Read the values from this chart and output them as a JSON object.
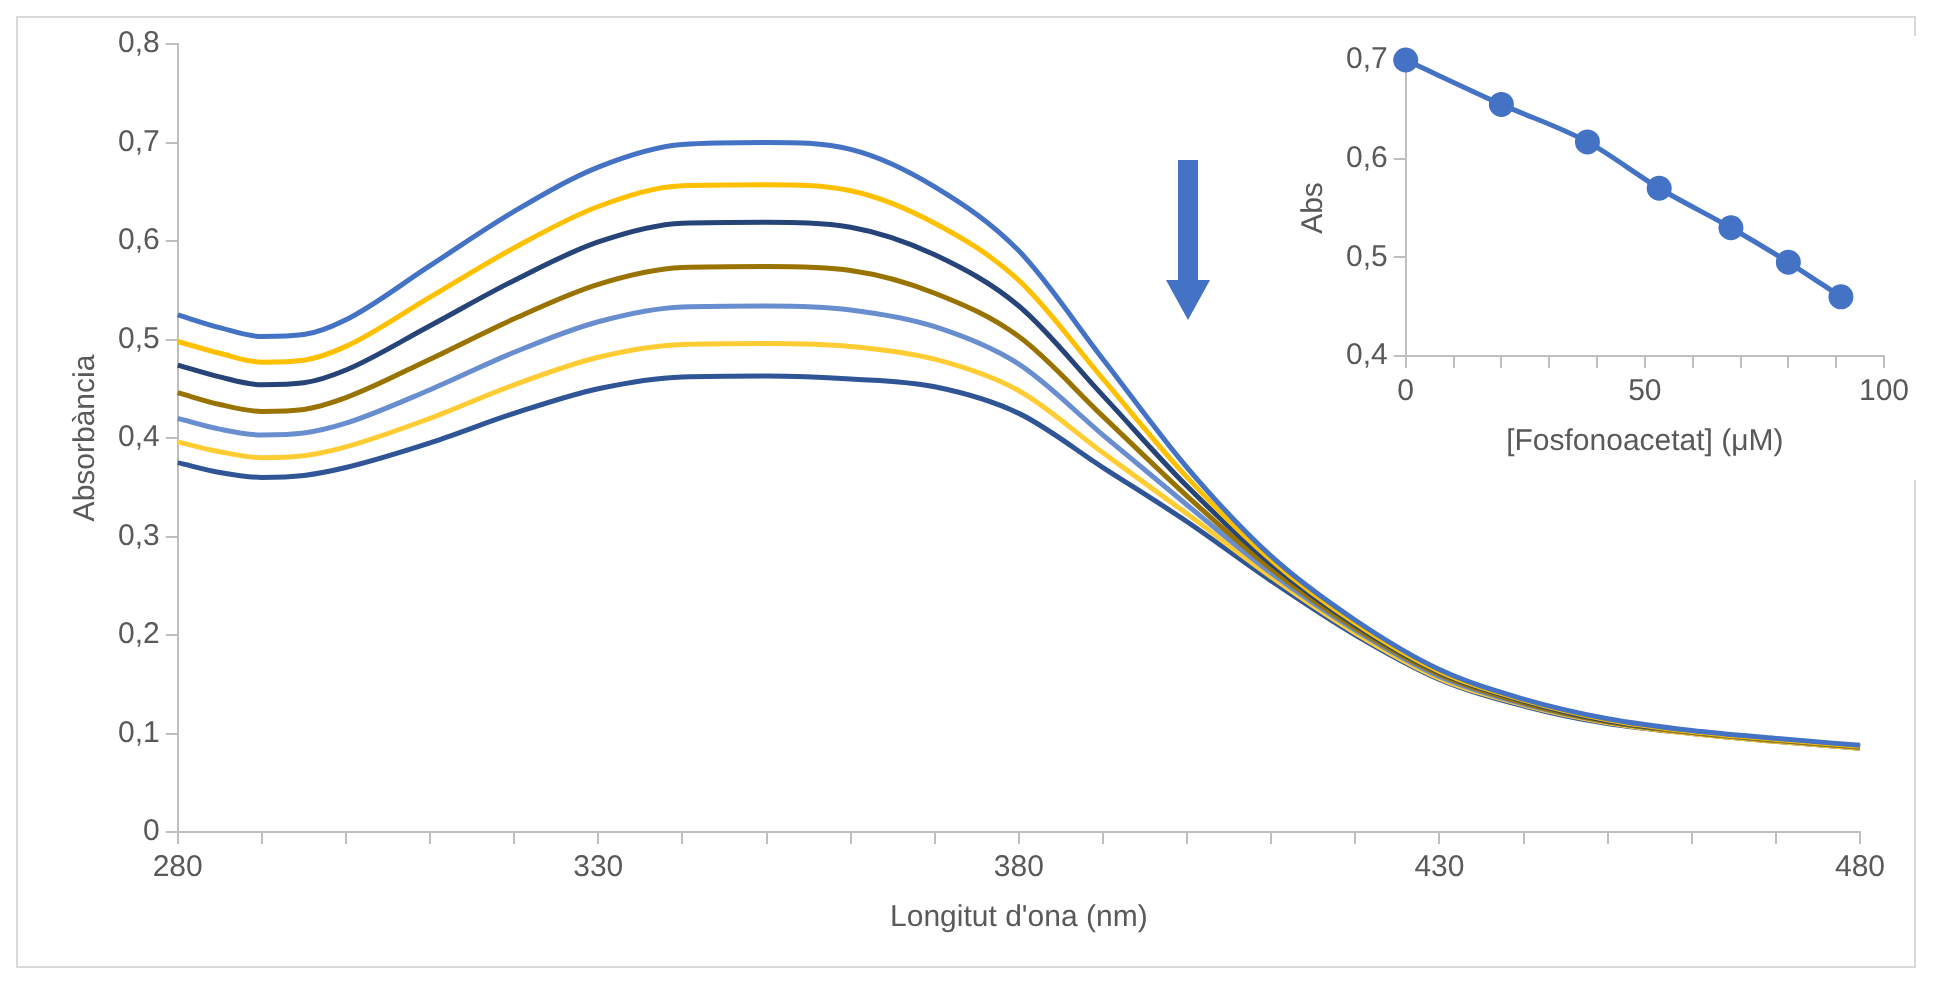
{
  "chart_data": [
    {
      "type": "line",
      "xlabel": "Longitut d'ona (nm)",
      "ylabel": "Absorbància",
      "marker": "none",
      "grid": false,
      "legend": false,
      "x": [
        280,
        285,
        290,
        295,
        300,
        310,
        320,
        330,
        340,
        350,
        360,
        370,
        380,
        390,
        400,
        410,
        420,
        430,
        440,
        450,
        460,
        470,
        480
      ],
      "xlim": [
        280,
        480
      ],
      "xticks": [
        {
          "value": 280,
          "label": "280"
        },
        {
          "value": 290,
          "label": null
        },
        {
          "value": 300,
          "label": null
        },
        {
          "value": 310,
          "label": null
        },
        {
          "value": 320,
          "label": null
        },
        {
          "value": 330,
          "label": "330"
        },
        {
          "value": 340,
          "label": null
        },
        {
          "value": 350,
          "label": null
        },
        {
          "value": 360,
          "label": null
        },
        {
          "value": 370,
          "label": null
        },
        {
          "value": 380,
          "label": "380"
        },
        {
          "value": 390,
          "label": null
        },
        {
          "value": 400,
          "label": null
        },
        {
          "value": 410,
          "label": null
        },
        {
          "value": 420,
          "label": null
        },
        {
          "value": 430,
          "label": "430"
        },
        {
          "value": 440,
          "label": null
        },
        {
          "value": 450,
          "label": null
        },
        {
          "value": 460,
          "label": null
        },
        {
          "value": 470,
          "label": null
        },
        {
          "value": 480,
          "label": "480"
        }
      ],
      "ylim": [
        0,
        0.8
      ],
      "yticks": [
        {
          "value": 0,
          "label": "0"
        },
        {
          "value": 0.1,
          "label": "0,1"
        },
        {
          "value": 0.2,
          "label": "0,2"
        },
        {
          "value": 0.3,
          "label": "0,3"
        },
        {
          "value": 0.4,
          "label": "0,4"
        },
        {
          "value": 0.5,
          "label": "0,5"
        },
        {
          "value": 0.6,
          "label": "0,6"
        },
        {
          "value": 0.7,
          "label": "0,7"
        },
        {
          "value": 0.8,
          "label": "0,8"
        }
      ],
      "series": [
        {
          "color": "#4472c4",
          "values": [
            0.525,
            0.512,
            0.503,
            0.505,
            0.52,
            0.575,
            0.63,
            0.675,
            0.698,
            0.7,
            0.693,
            0.655,
            0.59,
            0.48,
            0.37,
            0.28,
            0.215,
            0.165,
            0.135,
            0.115,
            0.103,
            0.095,
            0.088
          ]
        },
        {
          "color": "#ffc000",
          "values": [
            0.498,
            0.486,
            0.477,
            0.479,
            0.493,
            0.543,
            0.593,
            0.635,
            0.656,
            0.657,
            0.651,
            0.618,
            0.56,
            0.46,
            0.36,
            0.276,
            0.212,
            0.163,
            0.134,
            0.114,
            0.102,
            0.094,
            0.087
          ]
        },
        {
          "color": "#264478",
          "values": [
            0.474,
            0.462,
            0.454,
            0.456,
            0.469,
            0.514,
            0.56,
            0.599,
            0.618,
            0.619,
            0.614,
            0.586,
            0.534,
            0.443,
            0.351,
            0.272,
            0.21,
            0.162,
            0.133,
            0.113,
            0.102,
            0.094,
            0.087
          ]
        },
        {
          "color": "#997300",
          "values": [
            0.446,
            0.434,
            0.427,
            0.429,
            0.441,
            0.48,
            0.521,
            0.556,
            0.573,
            0.574,
            0.57,
            0.547,
            0.503,
            0.422,
            0.341,
            0.267,
            0.207,
            0.16,
            0.131,
            0.112,
            0.101,
            0.093,
            0.086
          ]
        },
        {
          "color": "#698ed0",
          "values": [
            0.42,
            0.409,
            0.403,
            0.405,
            0.415,
            0.449,
            0.487,
            0.518,
            0.533,
            0.534,
            0.53,
            0.513,
            0.475,
            0.403,
            0.332,
            0.263,
            0.205,
            0.158,
            0.13,
            0.112,
            0.101,
            0.093,
            0.086
          ]
        },
        {
          "color": "#ffcd33",
          "values": [
            0.396,
            0.386,
            0.38,
            0.382,
            0.391,
            0.42,
            0.454,
            0.482,
            0.495,
            0.496,
            0.493,
            0.48,
            0.448,
            0.385,
            0.323,
            0.259,
            0.202,
            0.156,
            0.129,
            0.111,
            0.1,
            0.092,
            0.085
          ]
        },
        {
          "color": "#2f5597",
          "values": [
            0.375,
            0.365,
            0.36,
            0.362,
            0.37,
            0.395,
            0.425,
            0.45,
            0.462,
            0.463,
            0.46,
            0.452,
            0.425,
            0.37,
            0.315,
            0.255,
            0.2,
            0.155,
            0.128,
            0.11,
            0.1,
            0.092,
            0.085
          ]
        }
      ]
    },
    {
      "type": "line",
      "xlabel": "[Fosfonoacetat] (μM)",
      "ylabel": "Abs",
      "marker": "circle",
      "grid": false,
      "legend": false,
      "x": [
        0,
        20,
        38,
        53,
        68,
        80,
        91
      ],
      "xlim": [
        0,
        100
      ],
      "xticks": [
        {
          "value": 0,
          "label": "0"
        },
        {
          "value": 10,
          "label": null
        },
        {
          "value": 20,
          "label": null
        },
        {
          "value": 30,
          "label": null
        },
        {
          "value": 40,
          "label": null
        },
        {
          "value": 50,
          "label": "50"
        },
        {
          "value": 60,
          "label": null
        },
        {
          "value": 70,
          "label": null
        },
        {
          "value": 80,
          "label": null
        },
        {
          "value": 90,
          "label": null
        },
        {
          "value": 100,
          "label": "100"
        }
      ],
      "ylim": [
        0.4,
        0.7
      ],
      "yticks": [
        {
          "value": 0.4,
          "label": "0,4"
        },
        {
          "value": 0.5,
          "label": "0,5"
        },
        {
          "value": 0.6,
          "label": "0,6"
        },
        {
          "value": 0.7,
          "label": "0,7"
        }
      ],
      "series": [
        {
          "color": "#4472c4",
          "values": [
            0.7,
            0.655,
            0.617,
            0.57,
            0.53,
            0.495,
            0.46
          ]
        }
      ]
    }
  ]
}
